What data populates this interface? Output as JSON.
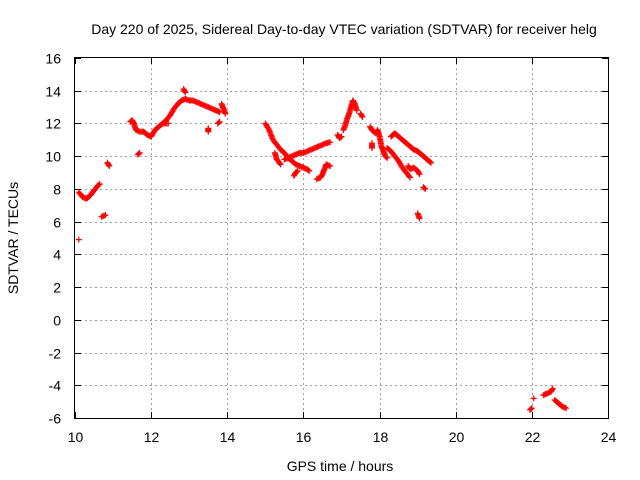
{
  "chart_data": {
    "type": "scatter",
    "title": "Day 220 of 2025, Sidereal Day-to-day VTEC variation (SDTVAR) for receiver helg",
    "xlabel": "GPS time / hours",
    "ylabel": "SDTVAR / TECUs",
    "xlim": [
      10,
      24
    ],
    "ylim": [
      -6,
      16
    ],
    "xticks": [
      10,
      12,
      14,
      16,
      18,
      20,
      22,
      24
    ],
    "yticks": [
      -6,
      -4,
      -2,
      0,
      2,
      4,
      6,
      8,
      10,
      12,
      14,
      16
    ],
    "grid": true,
    "marker": "+",
    "marker_color": "#ff0000",
    "series": [
      {
        "name": "SDTVAR",
        "tracks": [
          [
            [
              10.1,
              4.9
            ]
          ],
          [
            [
              10.1,
              7.8
            ],
            [
              10.2,
              7.5
            ],
            [
              10.3,
              7.4
            ],
            [
              10.4,
              7.6
            ],
            [
              10.5,
              7.9
            ],
            [
              10.6,
              8.2
            ],
            [
              10.65,
              8.3
            ]
          ],
          [
            [
              10.7,
              6.3
            ],
            [
              10.8,
              6.4
            ]
          ],
          [
            [
              10.85,
              9.6
            ],
            [
              10.9,
              9.4
            ]
          ],
          [
            [
              11.45,
              12.1
            ],
            [
              11.5,
              12.2
            ],
            [
              11.55,
              12.0
            ],
            [
              11.6,
              11.6
            ],
            [
              11.7,
              11.5
            ],
            [
              11.8,
              11.5
            ],
            [
              11.9,
              11.3
            ],
            [
              12.0,
              11.2
            ],
            [
              12.1,
              11.6
            ],
            [
              12.2,
              11.8
            ],
            [
              12.3,
              12.0
            ],
            [
              12.4,
              12.2
            ],
            [
              12.5,
              12.5
            ],
            [
              12.6,
              12.9
            ],
            [
              12.7,
              13.2
            ],
            [
              12.8,
              13.4
            ],
            [
              12.9,
              13.5
            ],
            [
              13.0,
              13.4
            ],
            [
              13.1,
              13.4
            ],
            [
              13.2,
              13.3
            ],
            [
              13.3,
              13.2
            ],
            [
              13.4,
              13.1
            ],
            [
              13.5,
              13.0
            ],
            [
              13.6,
              12.9
            ],
            [
              13.7,
              12.8
            ],
            [
              13.8,
              12.7
            ]
          ],
          [
            [
              11.65,
              10.1
            ],
            [
              11.7,
              10.2
            ]
          ],
          [
            [
              12.3,
              12.0
            ],
            [
              12.45,
              12.0
            ]
          ],
          [
            [
              12.85,
              14.1
            ],
            [
              12.9,
              13.9
            ]
          ],
          [
            [
              13.5,
              11.5
            ],
            [
              13.5,
              11.7
            ]
          ],
          [
            [
              13.75,
              12.0
            ],
            [
              13.8,
              12.1
            ]
          ],
          [
            [
              13.85,
              13.2
            ],
            [
              13.9,
              12.9
            ],
            [
              13.95,
              12.6
            ]
          ],
          [
            [
              15.0,
              12.0
            ],
            [
              15.1,
              11.6
            ],
            [
              15.2,
              11.0
            ],
            [
              15.3,
              10.7
            ],
            [
              15.4,
              10.4
            ],
            [
              15.5,
              10.2
            ],
            [
              15.6,
              9.9
            ],
            [
              15.7,
              9.7
            ],
            [
              15.8,
              9.5
            ],
            [
              15.9,
              9.4
            ],
            [
              16.0,
              9.3
            ],
            [
              16.1,
              9.2
            ],
            [
              16.15,
              9.1
            ]
          ],
          [
            [
              15.25,
              10.2
            ],
            [
              15.3,
              9.8
            ],
            [
              15.4,
              9.5
            ]
          ],
          [
            [
              15.5,
              9.8
            ],
            [
              15.6,
              9.9
            ],
            [
              15.7,
              10.0
            ],
            [
              15.8,
              10.1
            ],
            [
              15.9,
              10.2
            ],
            [
              16.0,
              10.2
            ],
            [
              16.1,
              10.3
            ],
            [
              16.2,
              10.4
            ],
            [
              16.3,
              10.5
            ],
            [
              16.4,
              10.6
            ],
            [
              16.5,
              10.7
            ],
            [
              16.6,
              10.8
            ],
            [
              16.7,
              10.85
            ]
          ],
          [
            [
              15.75,
              8.8
            ],
            [
              15.8,
              9.0
            ],
            [
              15.85,
              9.1
            ]
          ],
          [
            [
              16.35,
              8.6
            ],
            [
              16.45,
              8.7
            ],
            [
              16.5,
              8.9
            ],
            [
              16.55,
              9.2
            ],
            [
              16.6,
              9.5
            ],
            [
              16.7,
              9.4
            ]
          ],
          [
            [
              16.9,
              11.3
            ],
            [
              16.95,
              11.1
            ],
            [
              17.0,
              11.2
            ]
          ],
          [
            [
              17.05,
              11.6
            ],
            [
              17.1,
              11.9
            ],
            [
              17.15,
              12.3
            ],
            [
              17.2,
              12.6
            ],
            [
              17.25,
              13.0
            ],
            [
              17.3,
              13.4
            ],
            [
              17.35,
              13.2
            ],
            [
              17.4,
              12.8
            ]
          ],
          [
            [
              17.5,
              12.6
            ],
            [
              17.55,
              12.4
            ]
          ],
          [
            [
              17.75,
              11.8
            ],
            [
              17.8,
              11.6
            ],
            [
              17.85,
              11.5
            ],
            [
              17.9,
              11.4
            ],
            [
              17.95,
              11.6
            ],
            [
              18.0,
              11.2
            ],
            [
              18.05,
              10.6
            ],
            [
              18.1,
              10.3
            ],
            [
              18.15,
              10.0
            ],
            [
              18.2,
              9.9
            ]
          ],
          [
            [
              17.8,
              10.8
            ],
            [
              17.8,
              10.5
            ]
          ],
          [
            [
              18.2,
              10.5
            ],
            [
              18.3,
              10.3
            ],
            [
              18.4,
              10.0
            ],
            [
              18.5,
              9.7
            ],
            [
              18.6,
              9.3
            ],
            [
              18.7,
              9.0
            ],
            [
              18.8,
              8.7
            ]
          ],
          [
            [
              18.3,
              11.2
            ],
            [
              18.4,
              11.4
            ],
            [
              18.5,
              11.2
            ],
            [
              18.6,
              11.0
            ],
            [
              18.7,
              10.8
            ],
            [
              18.8,
              10.6
            ],
            [
              18.9,
              10.4
            ],
            [
              19.0,
              10.3
            ],
            [
              19.1,
              10.1
            ],
            [
              19.2,
              9.9
            ],
            [
              19.3,
              9.7
            ],
            [
              19.35,
              9.6
            ]
          ],
          [
            [
              18.75,
              9.4
            ],
            [
              18.8,
              9.2
            ],
            [
              18.9,
              9.3
            ],
            [
              19.0,
              9.1
            ],
            [
              19.05,
              8.9
            ]
          ],
          [
            [
              19.0,
              6.5
            ],
            [
              19.05,
              6.2
            ]
          ],
          [
            [
              19.15,
              8.1
            ],
            [
              19.2,
              8.0
            ]
          ],
          [
            [
              21.95,
              -5.5
            ],
            [
              22.0,
              -5.4
            ]
          ],
          [
            [
              22.05,
              -4.8
            ]
          ],
          [
            [
              22.3,
              -4.6
            ],
            [
              22.4,
              -4.5
            ],
            [
              22.5,
              -4.4
            ],
            [
              22.55,
              -4.2
            ]
          ],
          [
            [
              22.6,
              -4.9
            ],
            [
              22.7,
              -5.1
            ],
            [
              22.8,
              -5.3
            ],
            [
              22.9,
              -5.4
            ]
          ]
        ]
      }
    ]
  }
}
